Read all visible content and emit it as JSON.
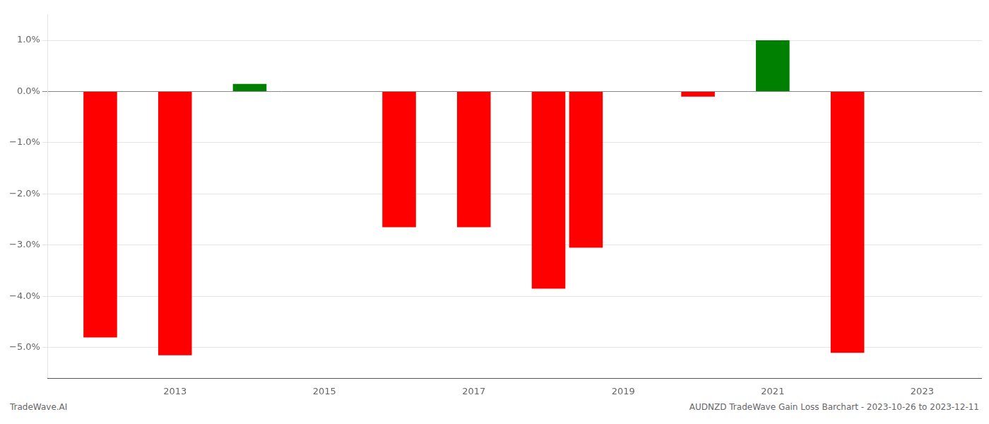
{
  "chart_data": {
    "type": "bar",
    "x": [
      2012,
      2013,
      2014,
      2016,
      2017,
      2018,
      2018.5,
      2020,
      2021,
      2022
    ],
    "values": [
      -4.8,
      -5.15,
      0.15,
      -2.65,
      -2.65,
      -3.85,
      -3.05,
      -0.1,
      1.0,
      -5.1
    ],
    "colors": [
      "#ff0000",
      "#ff0000",
      "#008000",
      "#ff0000",
      "#ff0000",
      "#ff0000",
      "#ff0000",
      "#ff0000",
      "#008000",
      "#ff0000"
    ],
    "xlim": [
      2011.3,
      2023.8
    ],
    "xticks": [
      2013,
      2015,
      2017,
      2019,
      2021,
      2023
    ],
    "ylim": [
      -5.6,
      1.5
    ],
    "yticks": [
      {
        "value": -5.0,
        "label": "−5.0%"
      },
      {
        "value": -4.0,
        "label": "−4.0%"
      },
      {
        "value": -3.0,
        "label": "−3.0%"
      },
      {
        "value": -2.0,
        "label": "−2.0%"
      },
      {
        "value": -1.0,
        "label": "−1.0%"
      },
      {
        "value": 0.0,
        "label": "0.0%"
      },
      {
        "value": 1.0,
        "label": "1.0%"
      }
    ],
    "grid": true,
    "annotations": [
      "TradeWave.AI",
      "AUDNZD TradeWave Gain Loss Barchart - 2023-10-26 to 2023-12-11"
    ]
  }
}
